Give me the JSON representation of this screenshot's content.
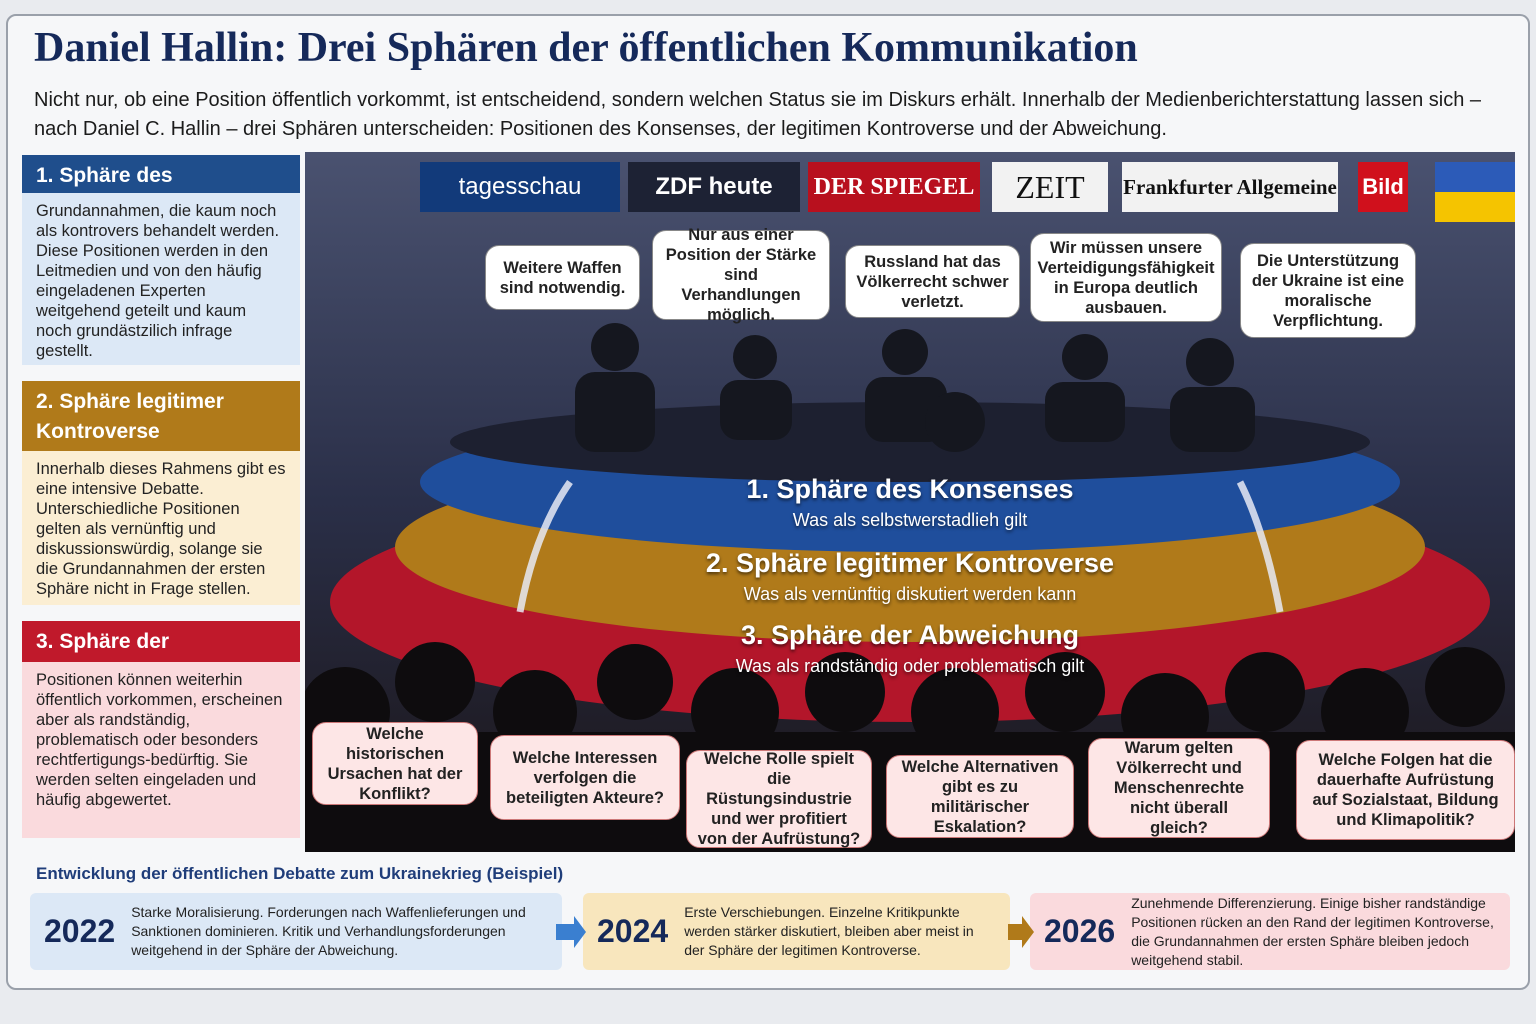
{
  "header": {
    "title": "Daniel Hallin: Drei Sphären der öffentlichen Kommunikation",
    "intro": "Nicht nur, ob eine Position öffentlich vorkommt, ist entscheidend, sondern welchen Status sie im Diskurs erhält. Innerhalb der Medienberichterstattung lassen sich – nach Daniel C. Hallin – drei Sphären unterscheiden: Positionen des Konsenses, der legitimen Kontroverse und der Abweichung."
  },
  "spheres": [
    {
      "title": "1. Sphäre des Konsenses",
      "text": "Grundannahmen, die kaum noch als kontrovers behandelt werden. Diese Positionen werden in den Leitmedien und von den häufig eingeladenen Experten weitgehend geteilt und kaum noch grundästzilich infrage gestellt."
    },
    {
      "title": "2. Sphäre legitimer Kontroverse",
      "text": "Innerhalb dieses Rahmens gibt es eine intensive Debatte. Unterschiedliche Positionen gelten als vernünftig und diskussionswürdig, solange sie die Grundannahmen der ersten Sphäre nicht in Frage stellen."
    },
    {
      "title": "3. Sphäre der Abweichung",
      "text": "Positionen können weiterhin öffentlich vorkommen, erscheinen aber als randständig, problematisch oder besonders rechtfertigungs-bedürftig. Sie werden selten eingeladen und häufig abgewertet."
    }
  ],
  "media": [
    "tagesschau",
    "ZDF heute",
    "DER SPIEGEL",
    "ZEIT",
    "Frankfurter Allgemeine",
    "Bild"
  ],
  "speech": [
    "Weitere Waffen sind notwendig.",
    "Nur aus einer Position der Stärke sind Verhandlungen möglich.",
    "Russland hat das Völkerrecht schwer verletzt.",
    "Wir müssen unsere Verteidigungsfähigkeit in Europa deutlich ausbauen.",
    "Die Unterstützung der Ukraine ist eine moralische Verpflichtung."
  ],
  "rings": [
    {
      "title": "1. Sphäre des Konsenses",
      "subtitle": "Was als selbstwerstadlieh gilt"
    },
    {
      "title": "2. Sphäre legitimer Kontroverse",
      "subtitle": "Was als vernünftig diskutiert werden kann"
    },
    {
      "title": "3. Sphäre der Abweichung",
      "subtitle": "Was als randständig oder problematisch gilt"
    }
  ],
  "questions": [
    "Welche historischen Ursachen hat der Konflikt?",
    "Welche Interessen verfolgen die beteiligten Akteure?",
    "Welche Rolle spielt die Rüstungsindustrie und wer profitiert von der Aufrüstung?",
    "Welche Alternativen gibt es zu militärischer Eskalation?",
    "Warum gelten Völkerrecht und Menschenrechte nicht überall gleich?",
    "Welche Folgen hat die dauerhafte Aufrüstung auf Sozialstaat, Bildung und Klimapolitik?"
  ],
  "timeline": {
    "heading": "Entwicklung der öffentlichen Debatte zum Ukrainekrieg (Beispiel)",
    "items": [
      {
        "year": "2022",
        "text": "Starke Moralisierung. Forderungen nach Waffenlieferungen und Sanktionen dominieren. Kritik und Verhandlungsforderungen weitgehend in der Sphäre der Abweichung."
      },
      {
        "year": "2024",
        "text": "Erste Verschiebungen. Einzelne Kritikpunkte werden stärker diskutiert, bleiben aber meist in der Sphäre der legitimen Kontroverse."
      },
      {
        "year": "2026",
        "text": "Zunehmende Differenzierung. Einige bisher randständige Positionen rücken an den Rand der legitimen Kontroverse, die Grundannahmen der ersten Sphäre bleiben jedoch weitgehend stabil."
      }
    ]
  }
}
